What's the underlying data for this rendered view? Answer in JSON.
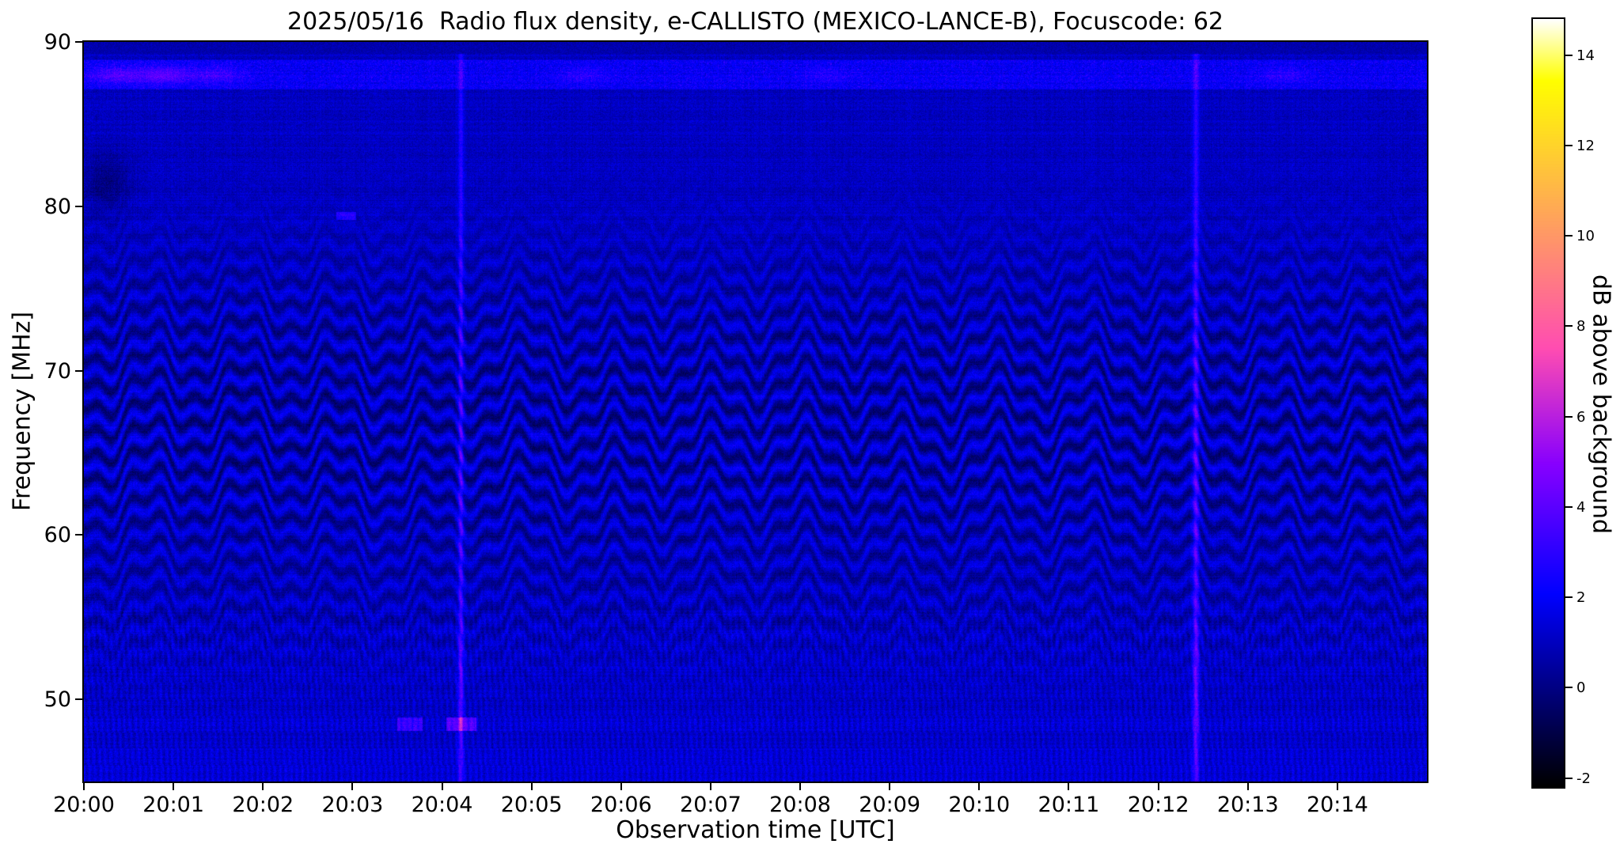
{
  "chart_data": {
    "type": "heatmap",
    "title": "2025/05/16  Radio flux density, e-CALLISTO (MEXICO-LANCE-B), Focuscode: 62",
    "date": "2025/05/16",
    "instrument": "e-CALLISTO (MEXICO-LANCE-B)",
    "focuscode": 62,
    "xlabel": "Observation time [UTC]",
    "ylabel": "Frequency [MHz]",
    "x_ticks": [
      "20:00",
      "20:01",
      "20:02",
      "20:03",
      "20:04",
      "20:05",
      "20:06",
      "20:07",
      "20:08",
      "20:09",
      "20:10",
      "20:11",
      "20:12",
      "20:13",
      "20:14"
    ],
    "x_range_minutes": [
      0,
      15
    ],
    "y_ticks": [
      90,
      80,
      70,
      60,
      50
    ],
    "y_range_mhz": [
      45,
      90
    ],
    "grid": false,
    "legend": "none",
    "colorbar": {
      "label": "dB above background",
      "ticks": [
        -2,
        0,
        2,
        4,
        6,
        8,
        10,
        12,
        14
      ],
      "range": [
        -2.2,
        14.8
      ],
      "colormap": "gnuplot2",
      "position": "right"
    },
    "background_level_db": 1.0,
    "features": [
      {
        "kind": "vertical-rfi-streak",
        "time": "20:04.2",
        "freq_range_mhz": [
          45,
          90
        ],
        "peak_db": 4.0
      },
      {
        "kind": "vertical-rfi-streak",
        "time": "20:12.4",
        "freq_range_mhz": [
          45,
          90
        ],
        "peak_db": 4.5
      },
      {
        "kind": "wavy-interference-fringes",
        "freq_range_mhz": [
          56,
          78
        ],
        "fringe_spacing_mhz": 1.45,
        "wobble_period_min": 1.0,
        "wobble_amplitude_mhz": 1.3,
        "depth_db": 2.0
      },
      {
        "kind": "broadband-speckle-band",
        "freq_mhz": 88,
        "time_range": [
          "20:00",
          "20:15"
        ],
        "brightest": "20:00-20:02",
        "peak_db": 4.5
      },
      {
        "kind": "narrowband-bursts",
        "freq_mhz": 48.5,
        "times": [
          "20:03.6",
          "20:04.2"
        ],
        "peak_db": 4.0
      },
      {
        "kind": "comb-striping",
        "freq_range_mhz": [
          45,
          57
        ],
        "stripe_period_s": 3.75,
        "depth_db": 1.0
      },
      {
        "kind": "short-bright-dash",
        "freq_mhz": 79.4,
        "time": "20:02.9",
        "peak_db": 3.0
      },
      {
        "kind": "dark-patch",
        "freq_range_mhz": [
          80,
          83
        ],
        "time": "20:00.2",
        "depth_db": -1.1
      }
    ]
  }
}
